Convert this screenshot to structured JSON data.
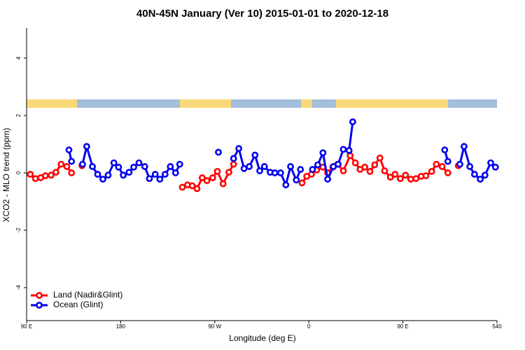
{
  "chart_data": {
    "type": "line",
    "title": "40N-45N January (Ver 10)   2015-01-01 to 2020-12-18",
    "x_label": "Longitude (deg E)",
    "y_label": "XCO2 - MLO trend (ppm)",
    "xlim": [
      90,
      540
    ],
    "ylim": [
      -5.15,
      5.05
    ],
    "xticks": [
      {
        "value": 90,
        "label": "90 E"
      },
      180,
      {
        "value": 270,
        "label": "90 W"
      },
      {
        "value": 360,
        "label": "0"
      },
      {
        "value": 450,
        "label": "90 E"
      },
      540
    ],
    "yticks": [
      -4,
      -2,
      0,
      2,
      4
    ],
    "legend": "bottom-left",
    "series": [
      {
        "name": "Land (Nadir&Glint)",
        "color": "#ff0000",
        "x": [
          93.5,
          98.5,
          103.5,
          108,
          113.5,
          118,
          123,
          128.5,
          133,
          null,
          143,
          null,
          239,
          244,
          248.5,
          253,
          258,
          262.5,
          268,
          272.5,
          278,
          283.5,
          288,
          null,
          353.5,
          358,
          362.5,
          367.5,
          373.5,
          378,
          383,
          387.5,
          393,
          399.5,
          404.5,
          409,
          413.5,
          418.5,
          423,
          428,
          432.5,
          438,
          442.5,
          447.5,
          452.5,
          457.5,
          462.5,
          467.5,
          472,
          477.5,
          482,
          487.5,
          493,
          null,
          503
        ],
        "values": [
          -0.05,
          -0.2,
          -0.17,
          -0.1,
          -0.08,
          0.02,
          0.3,
          0.22,
          0,
          null,
          0.25,
          null,
          -0.5,
          -0.42,
          -0.45,
          -0.55,
          -0.17,
          -0.27,
          -0.17,
          0.05,
          -0.38,
          0.02,
          0.3,
          null,
          -0.35,
          -0.12,
          -0.05,
          0.1,
          0.2,
          0,
          0.2,
          0.3,
          0.07,
          0.6,
          0.35,
          0.12,
          0.2,
          0.05,
          0.28,
          0.52,
          0.07,
          -0.15,
          -0.05,
          -0.2,
          -0.08,
          -0.22,
          -0.2,
          -0.12,
          -0.1,
          0.05,
          0.3,
          0.22,
          0,
          null,
          0.25
        ]
      },
      {
        "name": "Ocean (Glint)",
        "color": "#0000ee",
        "x": [
          130.5,
          133,
          null,
          143.5,
          147.5,
          153,
          158,
          163,
          168,
          173.5,
          178,
          182.5,
          188,
          192.5,
          197.5,
          203,
          207.5,
          213,
          217.5,
          222.5,
          227.5,
          232.5,
          236.5,
          null,
          273.5,
          null,
          288,
          293,
          298,
          303,
          308.5,
          313,
          317.5,
          323,
          327.5,
          333,
          338,
          342.5,
          348,
          352,
          null,
          363.5,
          368.5,
          373.5,
          378,
          383.5,
          388,
          393,
          398.5,
          402,
          null,
          490,
          493,
          null,
          504.5,
          508.5,
          514,
          518.5,
          524,
          528.5,
          534,
          538.5
        ],
        "values": [
          0.8,
          0.4,
          null,
          0.3,
          0.92,
          0.22,
          -0.05,
          -0.22,
          -0.08,
          0.35,
          0.2,
          -0.08,
          0.02,
          0.2,
          0.35,
          0.22,
          -0.2,
          -0.05,
          -0.22,
          -0.05,
          0.22,
          0,
          0.3,
          null,
          0.72,
          null,
          0.5,
          0.85,
          0.15,
          0.22,
          0.62,
          0.07,
          0.22,
          0.02,
          0,
          0,
          -0.42,
          0.22,
          -0.25,
          0.12,
          null,
          0.12,
          0.28,
          0.7,
          -0.22,
          0.22,
          0.3,
          0.82,
          0.78,
          1.78,
          null,
          0.8,
          0.4,
          null,
          0.3,
          0.92,
          0.22,
          -0.05,
          -0.22,
          -0.08,
          0.35,
          0.2
        ]
      }
    ]
  }
}
